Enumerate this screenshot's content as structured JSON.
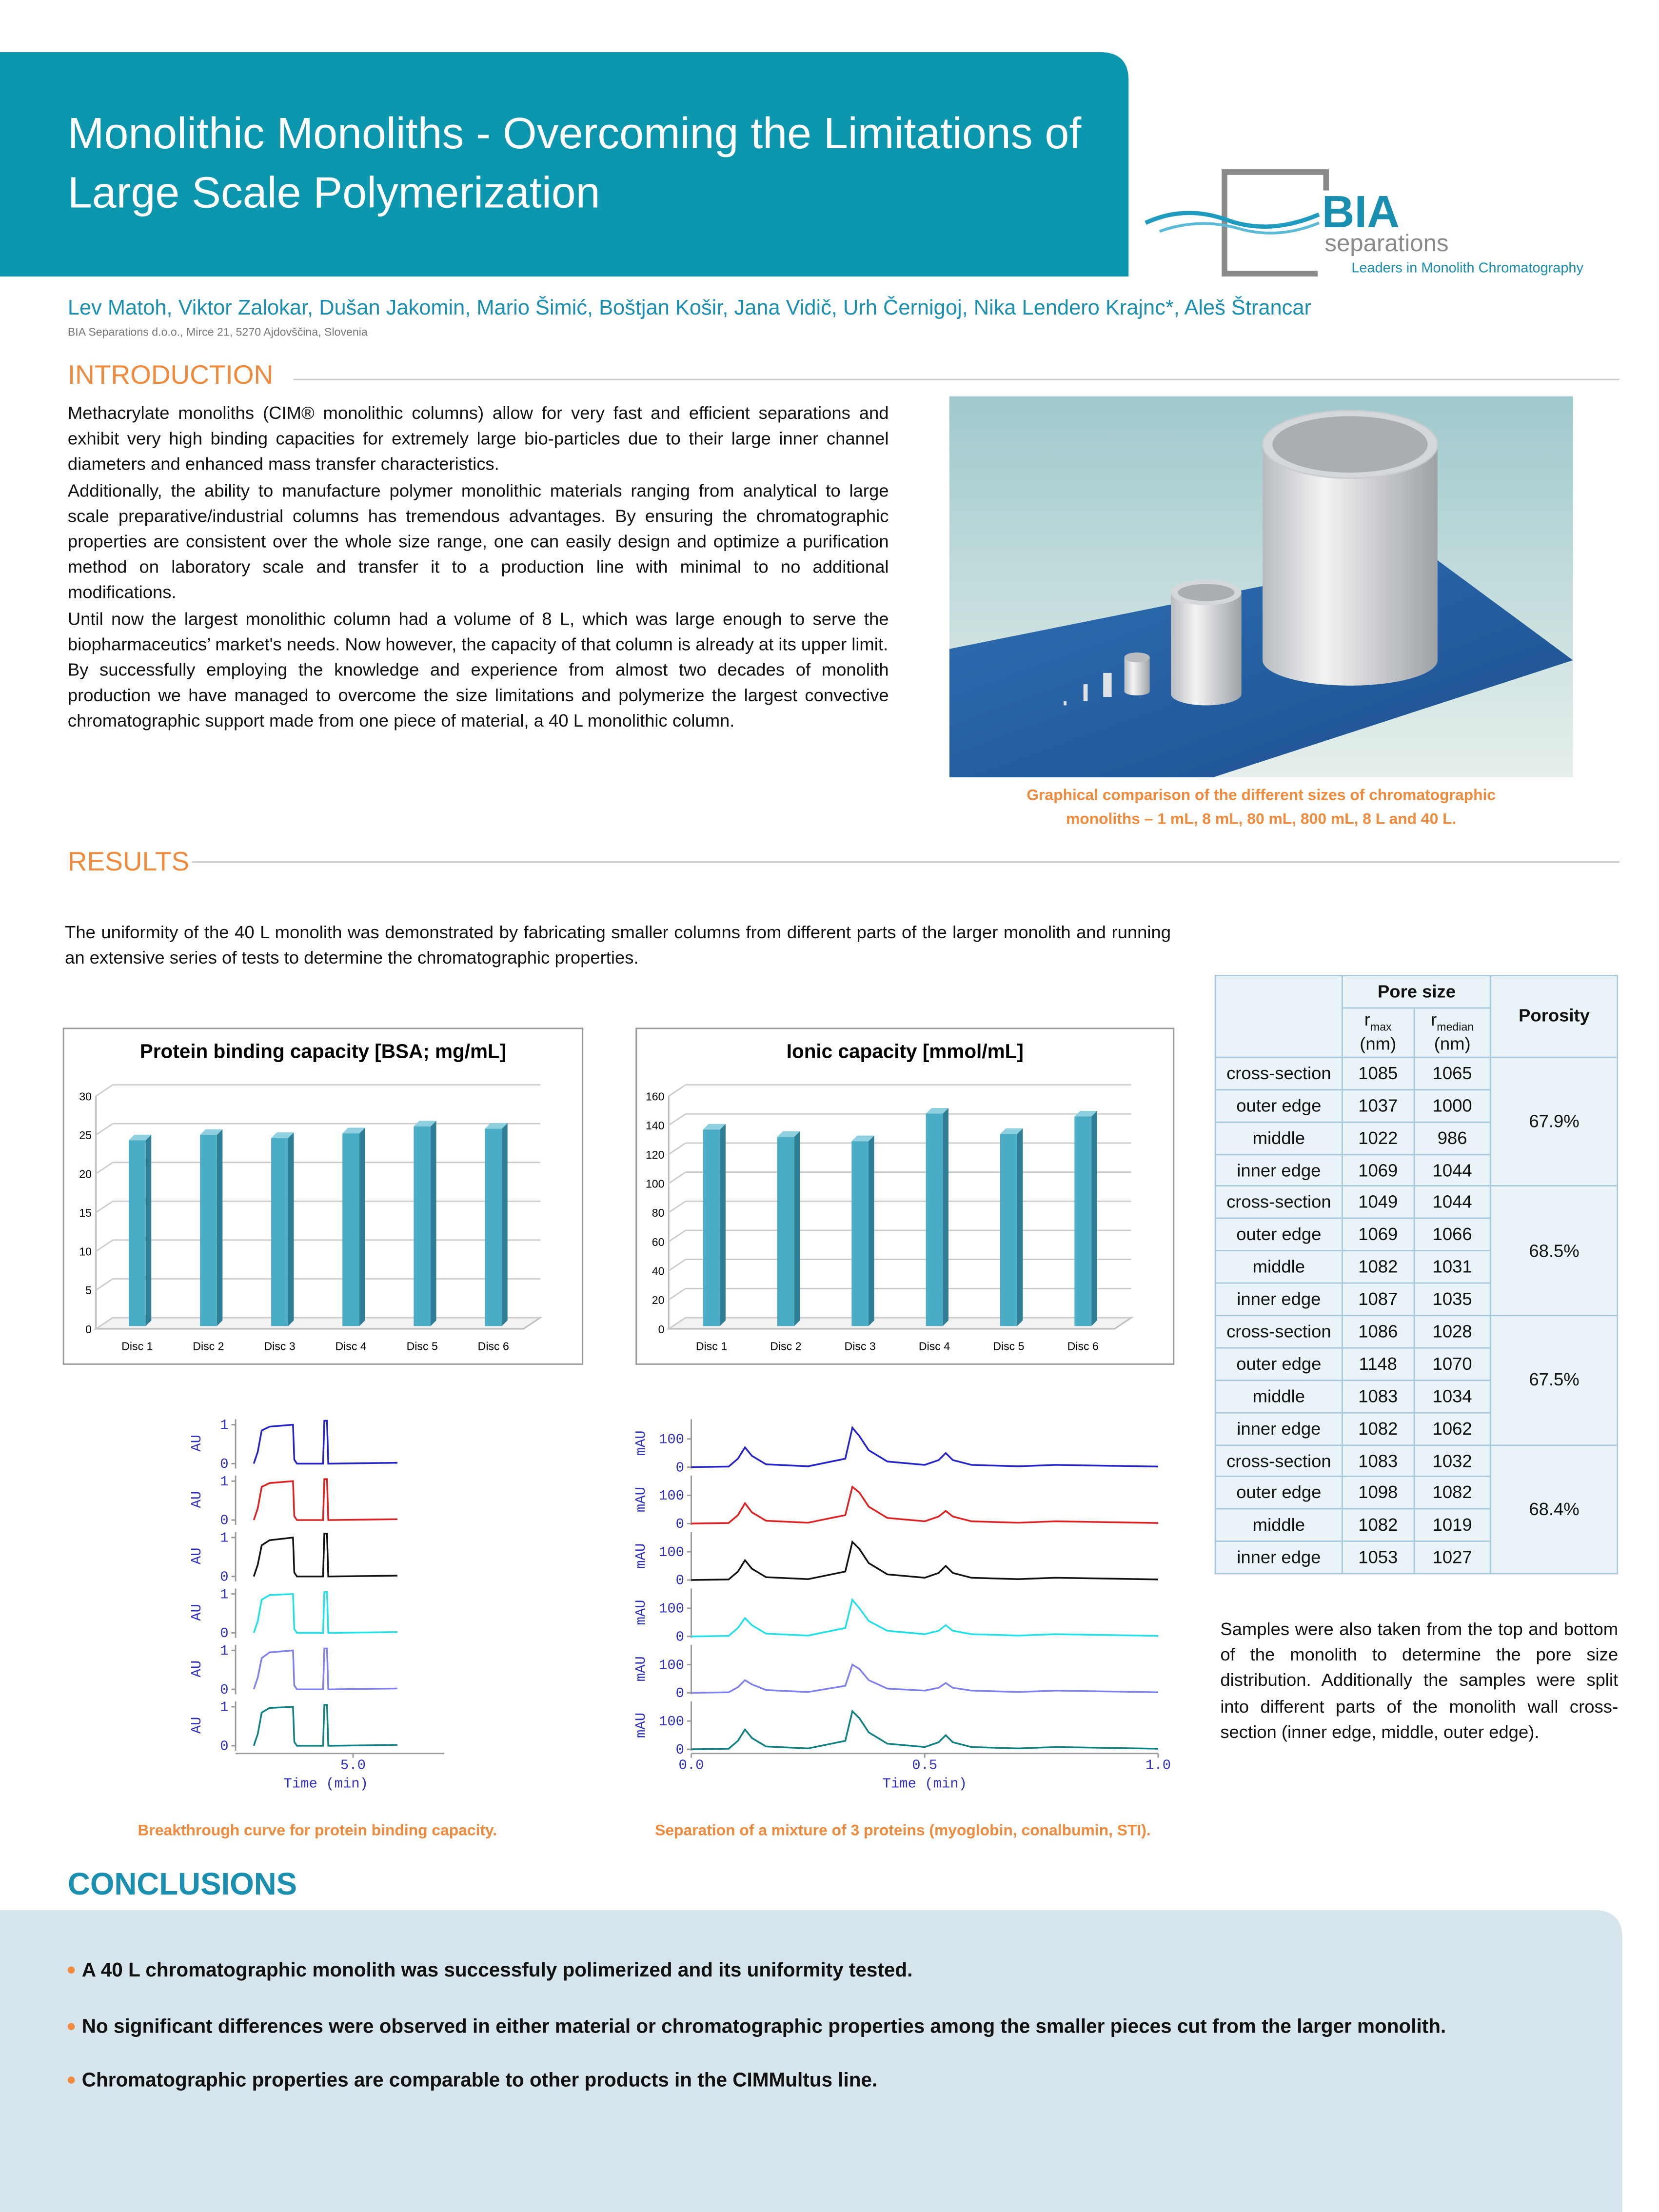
{
  "header": {
    "title": "Monolithic Monoliths - Overcoming the Limitations of Large Scale Polymerization",
    "authors": "Lev Matoh, Viktor Zalokar, Dušan Jakomin, Mario Šimić, Boštjan Košir, Jana Vidič, Urh Černigoj, Nika Lendero Krajnc*, Aleš Štrancar",
    "affiliation": "BIA Separations d.o.o., Mirce 21, 5270 Ajdovščina, Slovenia"
  },
  "logo": {
    "name": "BIA",
    "sub": "separations",
    "tagline": "Leaders in Monolith Chromatography"
  },
  "introduction": {
    "heading": "INTRODUCTION",
    "paragraphs": [
      "Methacrylate monoliths (CIM® monolithic columns) allow for very fast and efficient separations and exhibit very high binding capacities for extremely large bio-particles due to their large inner channel diameters and enhanced mass transfer characteristics.",
      "Additionally, the ability to manufacture polymer monolithic materials ranging from analytical to large scale preparative/industrial columns has tremendous advantages. By ensuring the chromatographic properties are consistent over the whole size range, one can easily design and optimize a purification method on laboratory scale and transfer it to a production line with minimal to no additional modifications.",
      "Until now the largest monolithic column had a volume of 8 L, which was large enough to serve the biopharmaceutics’ market's needs. Now however, the capacity of that column is already at its upper limit.",
      "By successfully employing the knowledge and experience from almost two decades of monolith production we have managed to overcome the size limitations and polymerize the largest convective chromatographic support made from one piece of material, a 40 L monolithic column."
    ],
    "figure_caption": "Graphical comparison of the different sizes of chromatographic monoliths  –  1 mL, 8 mL, 80 mL, 800 mL, 8 L and 40 L."
  },
  "results": {
    "heading": "RESULTS",
    "text": "The uniformity of the 40 L monolith was demonstrated by fabricating smaller columns from different parts of the larger monolith and running an extensive series of tests to determine the chromatographic properties.",
    "side_text": "Samples were also taken from the top and bottom of the monolith to determine the pore size distribution. Additionally the samples were split into different parts of the monolith wall cross-section (inner edge, middle, outer edge)."
  },
  "table": {
    "header": {
      "pore_size": "Pore size",
      "porosity": "Porosity",
      "r_max": {
        "symbol": "r",
        "sub": "max",
        "unit": "(nm)"
      },
      "r_median": {
        "symbol": "r",
        "sub": "median",
        "unit": "(nm)"
      }
    },
    "groups": [
      {
        "porosity": "67.9%",
        "rows": [
          [
            "cross-section",
            1085,
            1065
          ],
          [
            "outer edge",
            1037,
            1000
          ],
          [
            "middle",
            1022,
            986
          ],
          [
            "inner edge",
            1069,
            1044
          ]
        ]
      },
      {
        "porosity": "68.5%",
        "rows": [
          [
            "cross-section",
            1049,
            1044
          ],
          [
            "outer edge",
            1069,
            1066
          ],
          [
            "middle",
            1082,
            1031
          ],
          [
            "inner edge",
            1087,
            1035
          ]
        ]
      },
      {
        "porosity": "67.5%",
        "rows": [
          [
            "cross-section",
            1086,
            1028
          ],
          [
            "outer edge",
            1148,
            1070
          ],
          [
            "middle",
            1083,
            1034
          ],
          [
            "inner edge",
            1082,
            1062
          ]
        ]
      },
      {
        "porosity": "68.4%",
        "rows": [
          [
            "cross-section",
            1083,
            1032
          ],
          [
            "outer edge",
            1098,
            1082
          ],
          [
            "middle",
            1082,
            1019
          ],
          [
            "inner edge",
            1053,
            1027
          ]
        ]
      }
    ]
  },
  "chart_data": [
    {
      "type": "bar",
      "title": "Protein binding capacity [BSA; mg/mL]",
      "categories": [
        "Disc 1",
        "Disc 2",
        "Disc 3",
        "Disc 4",
        "Disc 5",
        "Disc 6"
      ],
      "values": [
        24.3,
        25.0,
        24.6,
        25.2,
        26.1,
        25.8
      ],
      "color": "#4bacc6",
      "ylim": [
        0,
        30
      ],
      "yticks": [
        0,
        5,
        10,
        15,
        20,
        25,
        30
      ],
      "grid": true
    },
    {
      "type": "bar",
      "title": "Ionic capacity [mmol/mL]",
      "categories": [
        "Disc 1",
        "Disc 2",
        "Disc 3",
        "Disc 4",
        "Disc 5",
        "Disc 6"
      ],
      "values": [
        137,
        132,
        129,
        148,
        134,
        146
      ],
      "color": "#4bacc6",
      "ylim": [
        0,
        160
      ],
      "yticks": [
        0,
        20,
        40,
        60,
        80,
        100,
        120,
        140,
        160
      ],
      "grid": true
    },
    {
      "type": "line",
      "stacked_panels": true,
      "caption": "Breakthrough curve for protein binding capacity.",
      "xlabel": "Time (min)",
      "ylabel": "AU",
      "xlim": [
        0.5,
        8.5
      ],
      "xticks": [
        {
          "value": 5,
          "label": "5.0"
        }
      ],
      "ylim": [
        -0.2,
        1.25
      ],
      "yticks": [
        0,
        1
      ],
      "x": [
        1.2,
        1.35,
        1.5,
        1.8,
        2.7,
        2.75,
        2.85,
        3.85,
        3.9,
        4.0,
        4.05,
        4.15,
        6.7
      ],
      "series": [
        {
          "color": "#2222c8",
          "values": [
            0,
            0.3,
            0.85,
            0.95,
            1.0,
            0.1,
            0,
            0,
            1.1,
            1.1,
            0,
            0,
            0.02
          ]
        },
        {
          "color": "#e02020",
          "values": [
            0,
            0.3,
            0.85,
            0.95,
            1.0,
            0.1,
            0,
            0,
            1.05,
            1.05,
            0,
            0,
            0.02
          ]
        },
        {
          "color": "#111111",
          "values": [
            0,
            0.3,
            0.8,
            0.93,
            1.0,
            0.1,
            0,
            0,
            1.1,
            1.1,
            0,
            0,
            0.02
          ]
        },
        {
          "color": "#22e0e8",
          "values": [
            0,
            0.3,
            0.85,
            0.97,
            1.0,
            0.1,
            0,
            0,
            1.05,
            1.05,
            0,
            0,
            0.02
          ]
        },
        {
          "color": "#8080ee",
          "values": [
            0,
            0.3,
            0.8,
            0.95,
            1.0,
            0.1,
            0,
            0,
            1.05,
            1.05,
            0,
            0,
            0.02
          ]
        },
        {
          "color": "#108080",
          "values": [
            0,
            0.3,
            0.85,
            0.97,
            1.0,
            0.1,
            0,
            0,
            1.05,
            1.05,
            0,
            0,
            0.02
          ]
        }
      ]
    },
    {
      "type": "line",
      "stacked_panels": true,
      "caption": "Separation of a mixture of 3 proteins (myoglobin, conalbumin, STI).",
      "xlabel": "Time (min)",
      "ylabel": "mAU",
      "xlim": [
        0,
        1
      ],
      "xticks": [
        {
          "value": 0,
          "label": "0.0"
        },
        0.5,
        {
          "value": 1,
          "label": "1.0"
        }
      ],
      "ylim": [
        -15,
        185
      ],
      "yticks": [
        0,
        100
      ],
      "x": [
        0,
        0.08,
        0.1,
        0.115,
        0.13,
        0.16,
        0.25,
        0.33,
        0.345,
        0.36,
        0.38,
        0.42,
        0.5,
        0.53,
        0.545,
        0.56,
        0.6,
        0.7,
        0.78,
        1.0
      ],
      "series": [
        {
          "color": "#2222c8",
          "values": [
            0,
            2,
            30,
            70,
            40,
            10,
            3,
            30,
            140,
            110,
            60,
            20,
            8,
            25,
            50,
            25,
            8,
            3,
            8,
            2
          ]
        },
        {
          "color": "#e02020",
          "values": [
            0,
            2,
            30,
            72,
            40,
            10,
            3,
            30,
            130,
            110,
            60,
            20,
            8,
            25,
            45,
            25,
            8,
            3,
            8,
            2
          ]
        },
        {
          "color": "#111111",
          "values": [
            0,
            2,
            30,
            70,
            40,
            10,
            3,
            30,
            135,
            110,
            60,
            20,
            8,
            25,
            50,
            25,
            8,
            3,
            8,
            2
          ]
        },
        {
          "color": "#22e0e8",
          "values": [
            0,
            2,
            30,
            65,
            40,
            10,
            3,
            30,
            130,
            100,
            55,
            20,
            8,
            20,
            40,
            20,
            8,
            3,
            8,
            2
          ]
        },
        {
          "color": "#8080ee",
          "values": [
            0,
            2,
            20,
            45,
            30,
            10,
            3,
            25,
            100,
            85,
            45,
            15,
            8,
            18,
            35,
            18,
            8,
            3,
            8,
            2
          ]
        },
        {
          "color": "#108080",
          "values": [
            0,
            2,
            30,
            70,
            40,
            10,
            3,
            30,
            135,
            110,
            60,
            20,
            8,
            25,
            50,
            25,
            8,
            3,
            8,
            2
          ]
        }
      ]
    }
  ],
  "conclusions": {
    "heading": "CONCLUSIONS",
    "items": [
      "A 40 L chromatographic monolith was successfuly polimerized and its uniformity tested.",
      "No significant differences were observed in either material or chromatographic properties among the smaller pieces cut from the larger monolith.",
      "Chromatographic properties are comparable to other products in the CIMMultus line."
    ]
  }
}
